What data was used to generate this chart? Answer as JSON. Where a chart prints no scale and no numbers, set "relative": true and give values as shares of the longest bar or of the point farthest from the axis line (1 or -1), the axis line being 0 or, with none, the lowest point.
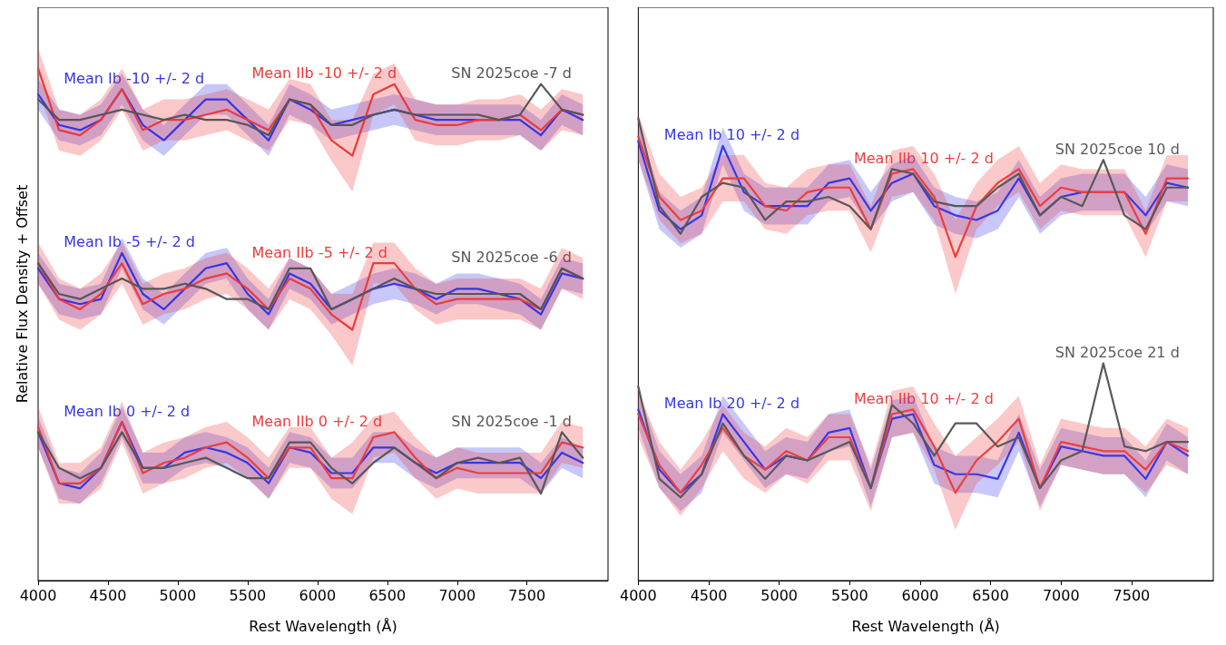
{
  "chart_data": [
    {
      "type": "line",
      "relative": true,
      "tick_labels": "x",
      "xlabel": "Rest Wavelength (Å)",
      "ylabel": "Relative Flux Density + Offset",
      "xlim": [
        4000,
        8080
      ],
      "xticks": [
        4000,
        4500,
        5000,
        5500,
        6000,
        6500,
        7000,
        7500
      ],
      "x": [
        4000,
        4150,
        4300,
        4450,
        4600,
        4750,
        4900,
        5050,
        5200,
        5350,
        5500,
        5650,
        5800,
        5950,
        6100,
        6250,
        6400,
        6550,
        6700,
        6850,
        7000,
        7150,
        7300,
        7450,
        7600,
        7750,
        7900
      ],
      "series": [
        {
          "name": "Mean Ib -10 +/- 2 d",
          "color": "#3434e6",
          "values": [
            0.95,
            0.89,
            0.88,
            0.9,
            0.96,
            0.89,
            0.86,
            0.9,
            0.94,
            0.94,
            0.9,
            0.86,
            0.94,
            0.92,
            0.89,
            0.9,
            0.91,
            0.92,
            0.91,
            0.9,
            0.9,
            0.9,
            0.9,
            0.9,
            0.87,
            0.92,
            0.9
          ],
          "lower": [
            0.92,
            0.86,
            0.85,
            0.87,
            0.93,
            0.86,
            0.83,
            0.87,
            0.91,
            0.91,
            0.87,
            0.83,
            0.91,
            0.89,
            0.86,
            0.87,
            0.88,
            0.89,
            0.88,
            0.87,
            0.87,
            0.87,
            0.87,
            0.87,
            0.84,
            0.89,
            0.87
          ],
          "upper": [
            0.98,
            0.92,
            0.91,
            0.93,
            0.99,
            0.92,
            0.89,
            0.93,
            0.97,
            0.97,
            0.93,
            0.89,
            0.97,
            0.95,
            0.92,
            0.93,
            0.94,
            0.95,
            0.94,
            0.93,
            0.93,
            0.93,
            0.93,
            0.93,
            0.9,
            0.95,
            0.93
          ]
        },
        {
          "name": "Mean IIb -10 +/- 2 d",
          "color": "#ec3a3a",
          "values": [
            1.0,
            0.88,
            0.87,
            0.9,
            0.96,
            0.88,
            0.9,
            0.9,
            0.91,
            0.92,
            0.9,
            0.88,
            0.94,
            0.93,
            0.86,
            0.83,
            0.95,
            0.97,
            0.9,
            0.89,
            0.89,
            0.9,
            0.9,
            0.91,
            0.88,
            0.92,
            0.91
          ],
          "lower": [
            0.96,
            0.84,
            0.83,
            0.86,
            0.92,
            0.84,
            0.86,
            0.86,
            0.87,
            0.88,
            0.86,
            0.84,
            0.9,
            0.89,
            0.82,
            0.76,
            0.91,
            0.93,
            0.86,
            0.85,
            0.85,
            0.86,
            0.86,
            0.87,
            0.84,
            0.88,
            0.87
          ],
          "upper": [
            1.04,
            0.92,
            0.91,
            0.94,
            1.0,
            0.92,
            0.94,
            0.94,
            0.95,
            0.96,
            0.94,
            0.92,
            0.98,
            0.97,
            0.9,
            0.9,
            0.99,
            1.01,
            0.94,
            0.93,
            0.93,
            0.94,
            0.94,
            0.95,
            0.92,
            0.96,
            0.95
          ]
        },
        {
          "name": "SN 2025coe -7 d",
          "color": "#555555",
          "values": [
            0.94,
            0.9,
            0.9,
            0.91,
            0.92,
            0.91,
            0.9,
            0.91,
            0.9,
            0.9,
            0.89,
            0.87,
            0.94,
            0.93,
            0.89,
            0.89,
            0.91,
            0.92,
            0.91,
            0.91,
            0.91,
            0.91,
            0.9,
            0.91,
            0.97,
            0.92,
            0.91
          ]
        },
        {
          "name": "Mean Ib -5 +/- 2 d",
          "color": "#3535e7",
          "values": [
            0.61,
            0.55,
            0.54,
            0.55,
            0.64,
            0.56,
            0.53,
            0.57,
            0.61,
            0.62,
            0.56,
            0.52,
            0.6,
            0.58,
            0.53,
            0.55,
            0.57,
            0.58,
            0.57,
            0.55,
            0.57,
            0.57,
            0.56,
            0.55,
            0.52,
            0.6,
            0.59
          ],
          "lower": [
            0.58,
            0.52,
            0.51,
            0.52,
            0.61,
            0.53,
            0.5,
            0.54,
            0.58,
            0.59,
            0.53,
            0.49,
            0.57,
            0.55,
            0.5,
            0.52,
            0.54,
            0.55,
            0.54,
            0.52,
            0.54,
            0.54,
            0.53,
            0.52,
            0.49,
            0.57,
            0.56
          ],
          "upper": [
            0.64,
            0.58,
            0.57,
            0.58,
            0.67,
            0.59,
            0.56,
            0.6,
            0.64,
            0.65,
            0.59,
            0.55,
            0.63,
            0.61,
            0.56,
            0.58,
            0.6,
            0.61,
            0.6,
            0.58,
            0.6,
            0.6,
            0.59,
            0.58,
            0.55,
            0.63,
            0.62
          ]
        },
        {
          "name": "Mean IIb -5 +/- 2 d",
          "color": "#ed3b3b",
          "values": [
            0.62,
            0.55,
            0.53,
            0.56,
            0.62,
            0.54,
            0.56,
            0.57,
            0.59,
            0.6,
            0.57,
            0.53,
            0.59,
            0.57,
            0.52,
            0.49,
            0.62,
            0.62,
            0.57,
            0.54,
            0.55,
            0.55,
            0.55,
            0.55,
            0.53,
            0.61,
            0.59
          ],
          "lower": [
            0.58,
            0.51,
            0.49,
            0.52,
            0.58,
            0.5,
            0.52,
            0.53,
            0.55,
            0.56,
            0.53,
            0.49,
            0.55,
            0.53,
            0.48,
            0.42,
            0.58,
            0.58,
            0.53,
            0.5,
            0.51,
            0.51,
            0.51,
            0.51,
            0.49,
            0.57,
            0.55
          ],
          "upper": [
            0.66,
            0.59,
            0.57,
            0.6,
            0.66,
            0.58,
            0.6,
            0.61,
            0.63,
            0.64,
            0.61,
            0.57,
            0.63,
            0.61,
            0.56,
            0.56,
            0.66,
            0.66,
            0.61,
            0.58,
            0.59,
            0.59,
            0.59,
            0.59,
            0.57,
            0.65,
            0.63
          ]
        },
        {
          "name": "SN 2025coe -6 d",
          "color": "#565656",
          "values": [
            0.62,
            0.56,
            0.55,
            0.57,
            0.59,
            0.57,
            0.57,
            0.58,
            0.57,
            0.55,
            0.55,
            0.53,
            0.61,
            0.61,
            0.53,
            0.55,
            0.57,
            0.59,
            0.57,
            0.56,
            0.56,
            0.56,
            0.56,
            0.56,
            0.53,
            0.61,
            0.59
          ]
        },
        {
          "name": "Mean Ib 0 +/- 2 d",
          "color": "#3636e8",
          "values": [
            0.29,
            0.19,
            0.18,
            0.22,
            0.31,
            0.22,
            0.22,
            0.25,
            0.26,
            0.25,
            0.23,
            0.19,
            0.26,
            0.25,
            0.21,
            0.21,
            0.26,
            0.26,
            0.23,
            0.21,
            0.23,
            0.23,
            0.23,
            0.23,
            0.2,
            0.25,
            0.23
          ],
          "lower": [
            0.26,
            0.16,
            0.15,
            0.19,
            0.28,
            0.19,
            0.19,
            0.22,
            0.23,
            0.22,
            0.2,
            0.16,
            0.23,
            0.22,
            0.18,
            0.18,
            0.23,
            0.23,
            0.2,
            0.18,
            0.2,
            0.2,
            0.2,
            0.2,
            0.17,
            0.22,
            0.2
          ],
          "upper": [
            0.32,
            0.22,
            0.21,
            0.25,
            0.34,
            0.25,
            0.25,
            0.28,
            0.29,
            0.28,
            0.26,
            0.22,
            0.29,
            0.28,
            0.24,
            0.24,
            0.29,
            0.29,
            0.26,
            0.24,
            0.26,
            0.26,
            0.26,
            0.26,
            0.23,
            0.28,
            0.26
          ]
        },
        {
          "name": "Mean IIb 0 +/- 2 d",
          "color": "#ee3c3c",
          "values": [
            0.3,
            0.19,
            0.19,
            0.22,
            0.31,
            0.21,
            0.23,
            0.24,
            0.26,
            0.27,
            0.24,
            0.2,
            0.26,
            0.26,
            0.2,
            0.2,
            0.28,
            0.29,
            0.24,
            0.2,
            0.22,
            0.21,
            0.21,
            0.21,
            0.21,
            0.27,
            0.26
          ],
          "lower": [
            0.26,
            0.15,
            0.15,
            0.18,
            0.27,
            0.17,
            0.19,
            0.2,
            0.22,
            0.23,
            0.2,
            0.16,
            0.22,
            0.22,
            0.16,
            0.13,
            0.24,
            0.25,
            0.2,
            0.16,
            0.18,
            0.17,
            0.17,
            0.17,
            0.17,
            0.23,
            0.22
          ],
          "upper": [
            0.34,
            0.23,
            0.23,
            0.26,
            0.35,
            0.25,
            0.27,
            0.28,
            0.3,
            0.31,
            0.28,
            0.24,
            0.3,
            0.3,
            0.24,
            0.27,
            0.32,
            0.33,
            0.28,
            0.24,
            0.26,
            0.25,
            0.25,
            0.25,
            0.25,
            0.31,
            0.3
          ]
        },
        {
          "name": "SN 2025coe -1 d",
          "color": "#575757",
          "values": [
            0.29,
            0.22,
            0.2,
            0.22,
            0.29,
            0.22,
            0.22,
            0.23,
            0.24,
            0.22,
            0.2,
            0.2,
            0.27,
            0.27,
            0.22,
            0.19,
            0.23,
            0.26,
            0.23,
            0.2,
            0.23,
            0.24,
            0.23,
            0.24,
            0.17,
            0.29,
            0.24
          ]
        }
      ]
    },
    {
      "type": "line",
      "relative": true,
      "tick_labels": "x",
      "xlabel": "Rest Wavelength (Å)",
      "xlim": [
        4000,
        8080
      ],
      "xticks": [
        4000,
        4500,
        5000,
        5500,
        6000,
        6500,
        7000,
        7500
      ],
      "x": [
        4000,
        4150,
        4300,
        4450,
        4600,
        4750,
        4900,
        5050,
        5200,
        5350,
        5500,
        5650,
        5800,
        5950,
        6100,
        6250,
        6400,
        6550,
        6700,
        6850,
        7000,
        7150,
        7300,
        7450,
        7600,
        7750,
        7900
      ],
      "series": [
        {
          "name": "Mean Ib 10 +/- 2 d",
          "color": "#3737e9",
          "values": [
            0.95,
            0.8,
            0.76,
            0.79,
            0.94,
            0.84,
            0.81,
            0.81,
            0.81,
            0.86,
            0.87,
            0.8,
            0.86,
            0.88,
            0.81,
            0.79,
            0.78,
            0.8,
            0.87,
            0.79,
            0.83,
            0.84,
            0.84,
            0.84,
            0.79,
            0.86,
            0.85
          ],
          "lower": [
            0.91,
            0.76,
            0.72,
            0.75,
            0.9,
            0.8,
            0.77,
            0.77,
            0.77,
            0.82,
            0.83,
            0.76,
            0.82,
            0.84,
            0.77,
            0.75,
            0.74,
            0.76,
            0.83,
            0.75,
            0.79,
            0.8,
            0.8,
            0.8,
            0.75,
            0.82,
            0.81
          ],
          "upper": [
            0.99,
            0.84,
            0.8,
            0.83,
            0.98,
            0.88,
            0.85,
            0.85,
            0.85,
            0.9,
            0.91,
            0.84,
            0.9,
            0.92,
            0.85,
            0.83,
            0.82,
            0.84,
            0.91,
            0.83,
            0.87,
            0.88,
            0.88,
            0.88,
            0.83,
            0.9,
            0.89
          ]
        },
        {
          "name": "Mean IIb 10 +/- 2 d",
          "color": "#ef3d3d",
          "values": [
            0.96,
            0.83,
            0.78,
            0.8,
            0.87,
            0.87,
            0.81,
            0.8,
            0.84,
            0.85,
            0.85,
            0.76,
            0.88,
            0.89,
            0.83,
            0.7,
            0.81,
            0.86,
            0.89,
            0.81,
            0.85,
            0.84,
            0.84,
            0.84,
            0.75,
            0.87,
            0.87
          ],
          "lower": [
            0.91,
            0.78,
            0.73,
            0.75,
            0.82,
            0.82,
            0.76,
            0.75,
            0.79,
            0.8,
            0.8,
            0.71,
            0.83,
            0.84,
            0.78,
            0.62,
            0.76,
            0.81,
            0.84,
            0.76,
            0.8,
            0.79,
            0.79,
            0.79,
            0.7,
            0.82,
            0.82
          ],
          "upper": [
            1.01,
            0.88,
            0.83,
            0.85,
            0.92,
            0.92,
            0.86,
            0.85,
            0.89,
            0.9,
            0.9,
            0.81,
            0.93,
            0.94,
            0.88,
            0.78,
            0.86,
            0.91,
            0.94,
            0.86,
            0.9,
            0.89,
            0.89,
            0.89,
            0.8,
            0.92,
            0.92
          ]
        },
        {
          "name": "SN 2025coe 10 d",
          "color": "#585858",
          "values": [
            1.0,
            0.81,
            0.75,
            0.83,
            0.86,
            0.85,
            0.78,
            0.82,
            0.82,
            0.83,
            0.81,
            0.76,
            0.89,
            0.88,
            0.82,
            0.81,
            0.81,
            0.85,
            0.88,
            0.79,
            0.83,
            0.81,
            0.91,
            0.79,
            0.76,
            0.85,
            0.85
          ]
        },
        {
          "name": "Mean Ib 20 +/- 2 d",
          "color": "#3838ea",
          "values": [
            0.37,
            0.24,
            0.19,
            0.23,
            0.36,
            0.3,
            0.24,
            0.27,
            0.26,
            0.32,
            0.33,
            0.2,
            0.35,
            0.36,
            0.25,
            0.23,
            0.23,
            0.22,
            0.32,
            0.2,
            0.29,
            0.28,
            0.27,
            0.27,
            0.22,
            0.3,
            0.27
          ],
          "lower": [
            0.33,
            0.2,
            0.15,
            0.19,
            0.32,
            0.26,
            0.2,
            0.23,
            0.22,
            0.28,
            0.29,
            0.16,
            0.31,
            0.32,
            0.21,
            0.19,
            0.19,
            0.18,
            0.28,
            0.16,
            0.25,
            0.24,
            0.23,
            0.23,
            0.18,
            0.26,
            0.23
          ],
          "upper": [
            0.41,
            0.28,
            0.23,
            0.27,
            0.4,
            0.34,
            0.28,
            0.31,
            0.3,
            0.36,
            0.37,
            0.24,
            0.39,
            0.4,
            0.29,
            0.27,
            0.27,
            0.26,
            0.36,
            0.24,
            0.33,
            0.32,
            0.31,
            0.31,
            0.26,
            0.34,
            0.31
          ]
        },
        {
          "name": "Mean IIb 10 +/- 2 d",
          "color": "#f03e3e",
          "values": [
            0.36,
            0.25,
            0.19,
            0.25,
            0.33,
            0.27,
            0.24,
            0.28,
            0.26,
            0.31,
            0.31,
            0.2,
            0.36,
            0.37,
            0.29,
            0.19,
            0.26,
            0.3,
            0.35,
            0.2,
            0.3,
            0.29,
            0.28,
            0.28,
            0.24,
            0.3,
            0.28
          ],
          "lower": [
            0.31,
            0.2,
            0.14,
            0.2,
            0.28,
            0.22,
            0.19,
            0.23,
            0.21,
            0.26,
            0.26,
            0.15,
            0.31,
            0.32,
            0.24,
            0.11,
            0.21,
            0.25,
            0.3,
            0.15,
            0.25,
            0.24,
            0.23,
            0.23,
            0.19,
            0.25,
            0.23
          ],
          "upper": [
            0.41,
            0.3,
            0.24,
            0.3,
            0.38,
            0.32,
            0.29,
            0.33,
            0.31,
            0.36,
            0.36,
            0.25,
            0.41,
            0.42,
            0.34,
            0.27,
            0.31,
            0.35,
            0.4,
            0.25,
            0.35,
            0.34,
            0.33,
            0.33,
            0.29,
            0.35,
            0.33
          ]
        },
        {
          "name": "SN 2025coe 21 d",
          "color": "#595959",
          "values": [
            0.42,
            0.22,
            0.18,
            0.23,
            0.34,
            0.27,
            0.22,
            0.27,
            0.26,
            0.28,
            0.3,
            0.2,
            0.38,
            0.34,
            0.27,
            0.34,
            0.34,
            0.29,
            0.31,
            0.2,
            0.26,
            0.28,
            0.47,
            0.29,
            0.28,
            0.3,
            0.3
          ]
        }
      ]
    }
  ]
}
